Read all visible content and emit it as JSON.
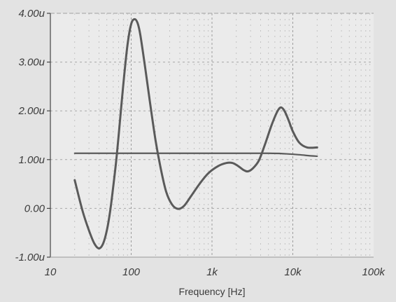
{
  "chart_data": {
    "type": "line",
    "title": "",
    "xlabel": "Frequency [Hz]",
    "ylabel": "",
    "x_scale": "log",
    "xlim": [
      10,
      100000
    ],
    "ylim": [
      -1.0,
      4.0
    ],
    "grid": true,
    "legend": "none",
    "x_ticks": [
      {
        "value": 10,
        "label": "10"
      },
      {
        "value": 100,
        "label": "100"
      },
      {
        "value": 1000,
        "label": "1k"
      },
      {
        "value": 10000,
        "label": "10k"
      },
      {
        "value": 100000,
        "label": "100k"
      }
    ],
    "y_ticks": [
      {
        "value": -1.0,
        "label": "-1.00u"
      },
      {
        "value": 0.0,
        "label": "0.00"
      },
      {
        "value": 1.0,
        "label": "1.00u"
      },
      {
        "value": 2.0,
        "label": "2.00u"
      },
      {
        "value": 3.0,
        "label": "3.00u"
      },
      {
        "value": 4.0,
        "label": "4.00u"
      }
    ],
    "series": [
      {
        "color": "#5a5a5a",
        "points": [
          [
            20,
            0.58
          ],
          [
            25,
            -0.05
          ],
          [
            30,
            -0.45
          ],
          [
            35,
            -0.72
          ],
          [
            40,
            -0.82
          ],
          [
            45,
            -0.72
          ],
          [
            50,
            -0.45
          ],
          [
            55,
            -0.05
          ],
          [
            60,
            0.45
          ],
          [
            65,
            0.95
          ],
          [
            70,
            1.5
          ],
          [
            80,
            2.55
          ],
          [
            90,
            3.35
          ],
          [
            100,
            3.78
          ],
          [
            110,
            3.88
          ],
          [
            120,
            3.8
          ],
          [
            130,
            3.55
          ],
          [
            150,
            2.85
          ],
          [
            170,
            2.2
          ],
          [
            200,
            1.4
          ],
          [
            230,
            0.85
          ],
          [
            270,
            0.35
          ],
          [
            320,
            0.08
          ],
          [
            380,
            -0.01
          ],
          [
            450,
            0.05
          ],
          [
            550,
            0.25
          ],
          [
            700,
            0.5
          ],
          [
            900,
            0.72
          ],
          [
            1200,
            0.87
          ],
          [
            1500,
            0.93
          ],
          [
            1800,
            0.93
          ],
          [
            2100,
            0.87
          ],
          [
            2500,
            0.78
          ],
          [
            2800,
            0.76
          ],
          [
            3200,
            0.82
          ],
          [
            3800,
            0.98
          ],
          [
            4500,
            1.3
          ],
          [
            5500,
            1.72
          ],
          [
            6500,
            2.0
          ],
          [
            7200,
            2.07
          ],
          [
            8000,
            1.98
          ],
          [
            9000,
            1.78
          ],
          [
            10000,
            1.58
          ],
          [
            12000,
            1.35
          ],
          [
            15000,
            1.25
          ],
          [
            20000,
            1.25
          ]
        ]
      },
      {
        "color": "#5a5a5a",
        "points": [
          [
            20,
            1.13
          ],
          [
            100,
            1.13
          ],
          [
            1000,
            1.13
          ],
          [
            5000,
            1.13
          ],
          [
            8000,
            1.12
          ],
          [
            12000,
            1.1
          ],
          [
            16000,
            1.08
          ],
          [
            20000,
            1.07
          ]
        ]
      }
    ]
  }
}
